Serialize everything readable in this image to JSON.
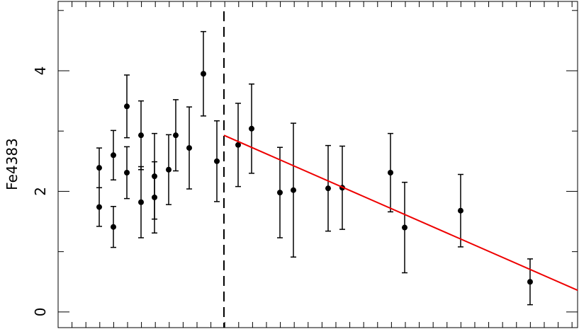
{
  "chart_data": {
    "type": "scatter",
    "y_label": "Fe4383",
    "x": [
      2.96,
      2.96,
      3.98,
      3.98,
      4.95,
      4.95,
      5.97,
      5.97,
      6.94,
      6.94,
      7.96,
      8.47,
      9.44,
      10.46,
      11.43,
      12.96,
      13.93,
      15.97,
      16.94,
      19.44,
      20.46,
      23.93,
      24.95,
      28.98,
      33.98
    ],
    "values": [
      2.39,
      1.74,
      2.6,
      1.41,
      3.41,
      2.31,
      2.93,
      1.82,
      2.25,
      1.9,
      2.36,
      2.93,
      2.72,
      3.95,
      2.5,
      2.77,
      3.04,
      1.98,
      2.02,
      2.05,
      2.06,
      2.31,
      1.4,
      1.68,
      0.5
    ],
    "errors": [
      0.33,
      0.32,
      0.41,
      0.34,
      0.52,
      0.43,
      0.57,
      0.59,
      0.71,
      0.59,
      0.58,
      0.59,
      0.68,
      0.7,
      0.67,
      0.69,
      0.74,
      0.75,
      1.11,
      0.71,
      0.69,
      0.65,
      0.75,
      0.6,
      0.38
    ],
    "color": "#000000",
    "fit": {
      "x": [
        11.94,
        37.4
      ],
      "values": [
        2.93,
        0.36
      ],
      "color": "#ee0000"
    },
    "vline": 11.94,
    "xlim": [
      0,
      37.4
    ],
    "ylim": [
      -0.26,
      5.15
    ],
    "yticks": [
      0,
      2,
      4
    ],
    "y_minor_ticks": [
      1,
      3,
      5
    ],
    "xticks": [
      1,
      2,
      3,
      4,
      5,
      6,
      7,
      8,
      9,
      10,
      11,
      12,
      13,
      14,
      15,
      16,
      17,
      18,
      19,
      20,
      21,
      22,
      23,
      24,
      25,
      26,
      27,
      28,
      29,
      30,
      31,
      32,
      33,
      34,
      35,
      36,
      37
    ]
  }
}
